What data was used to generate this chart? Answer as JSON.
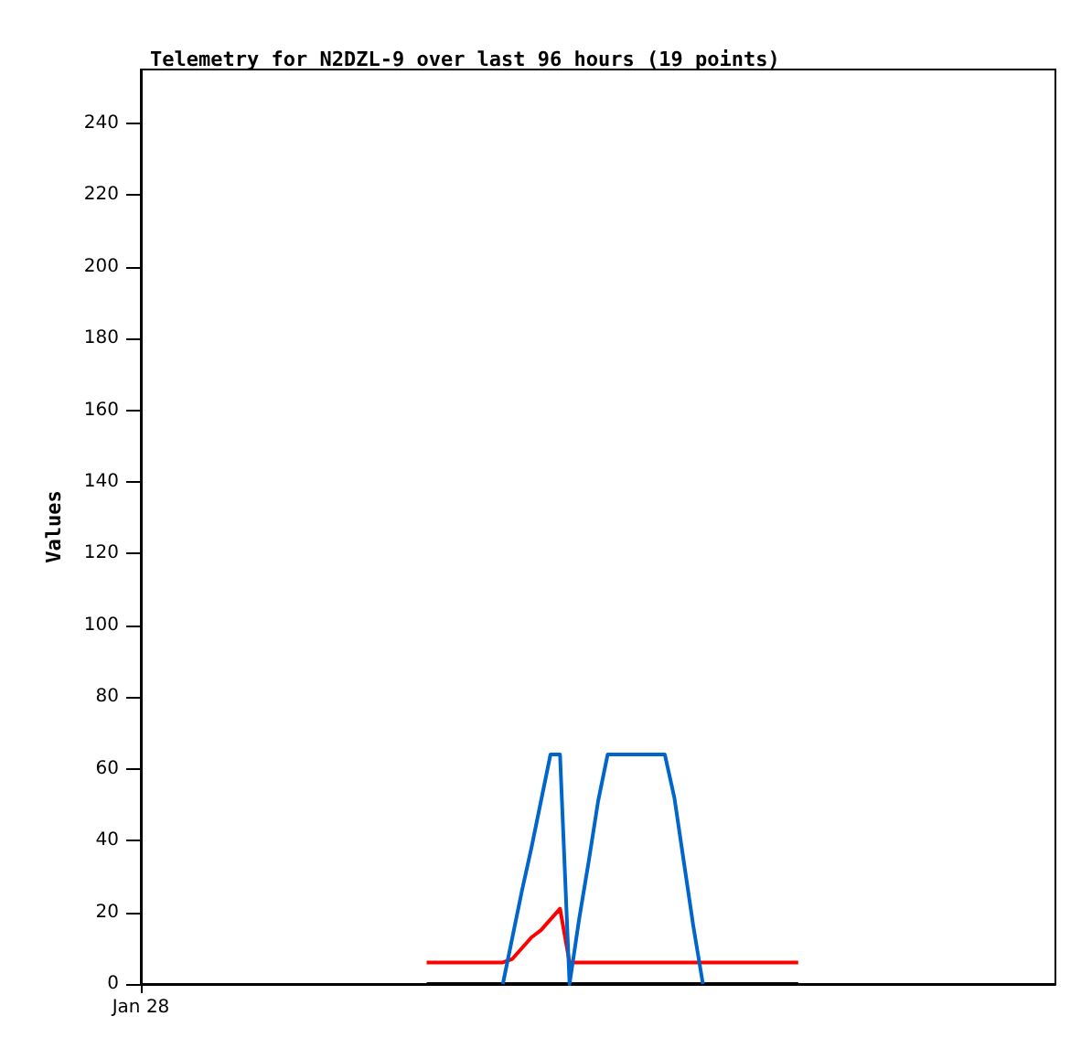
{
  "chart_data": {
    "type": "line",
    "title": "Telemetry for N2DZL-9 over last 96 hours (19 points)",
    "ylabel": "Values",
    "categories": [
      "Jan 28",
      null,
      null,
      null,
      null,
      null,
      null,
      null,
      null,
      null,
      null,
      null,
      null,
      null,
      null,
      null,
      null,
      null,
      null,
      null,
      null,
      null,
      null,
      null,
      null,
      null,
      null,
      null,
      null,
      null,
      null,
      null,
      null,
      null,
      null,
      null,
      null,
      null,
      null,
      null,
      null,
      null,
      null,
      null,
      null,
      null,
      null,
      null,
      null,
      null,
      null,
      null,
      null,
      null,
      null,
      null,
      null,
      null,
      null,
      null,
      null,
      null,
      null,
      null,
      null,
      null,
      null,
      null,
      null,
      null,
      null,
      null,
      null,
      null,
      null,
      null,
      null,
      null,
      null,
      null,
      null,
      null,
      null,
      null,
      null,
      null,
      null,
      null,
      null,
      null,
      null,
      null,
      null,
      null,
      null,
      null,
      null
    ],
    "ylim": [
      0,
      255
    ],
    "yticks": [
      0,
      20,
      40,
      60,
      80,
      100,
      120,
      140,
      160,
      180,
      200,
      220,
      240
    ],
    "grid": false,
    "marker": "none",
    "line_style": "solid",
    "series": [
      {
        "color": "#000000",
        "values": [
          null,
          null,
          null,
          null,
          null,
          null,
          null,
          null,
          null,
          null,
          null,
          null,
          null,
          null,
          null,
          null,
          null,
          null,
          null,
          null,
          null,
          null,
          null,
          null,
          null,
          null,
          null,
          null,
          null,
          null,
          0,
          0,
          0,
          0,
          0,
          0,
          0,
          0,
          0,
          0,
          0,
          0,
          0,
          0,
          0,
          0,
          0,
          0,
          0,
          0,
          0,
          0,
          0,
          0,
          0,
          0,
          0,
          0,
          0,
          0,
          0,
          0,
          0,
          0,
          0,
          0,
          0,
          0,
          0,
          0,
          null,
          null,
          null,
          null,
          null,
          null,
          null,
          null,
          null,
          null,
          null,
          null,
          null,
          null,
          null,
          null,
          null,
          null,
          null,
          null,
          null,
          null,
          null,
          null,
          null,
          null,
          null
        ]
      },
      {
        "color": "#ff0000",
        "values": [
          null,
          null,
          null,
          null,
          null,
          null,
          null,
          null,
          null,
          null,
          null,
          null,
          null,
          null,
          null,
          null,
          null,
          null,
          null,
          null,
          null,
          null,
          null,
          null,
          null,
          null,
          null,
          null,
          null,
          null,
          6,
          6,
          6,
          6,
          6,
          6,
          6,
          6,
          6,
          7,
          10,
          13,
          15,
          18,
          21,
          6,
          6,
          6,
          6,
          6,
          6,
          6,
          6,
          6,
          6,
          6,
          6,
          6,
          6,
          6,
          6,
          6,
          6,
          6,
          6,
          6,
          6,
          6,
          6,
          6,
          null,
          null,
          null,
          null,
          null,
          null,
          null,
          null,
          null,
          null,
          null,
          null,
          null,
          null,
          null,
          null,
          null,
          null,
          null,
          null,
          null,
          null,
          null,
          null,
          null,
          null,
          null
        ]
      },
      {
        "color": "#0066cc",
        "values": [
          null,
          null,
          null,
          null,
          null,
          null,
          null,
          null,
          null,
          null,
          null,
          null,
          null,
          null,
          null,
          null,
          null,
          null,
          null,
          null,
          null,
          null,
          null,
          null,
          null,
          null,
          null,
          null,
          null,
          null,
          null,
          null,
          null,
          null,
          null,
          null,
          null,
          null,
          0,
          13,
          26,
          38,
          51,
          64,
          64,
          0,
          18,
          34,
          51,
          64,
          64,
          64,
          64,
          64,
          64,
          64,
          52,
          34,
          16,
          0,
          null,
          null,
          null,
          null,
          null,
          null,
          null,
          null,
          null,
          null,
          null,
          null,
          null,
          null,
          null,
          null,
          null,
          null,
          null,
          null,
          null,
          null,
          null,
          null,
          null,
          null,
          null,
          null,
          null,
          null,
          null,
          null,
          null,
          null,
          null,
          null,
          null
        ]
      }
    ]
  }
}
